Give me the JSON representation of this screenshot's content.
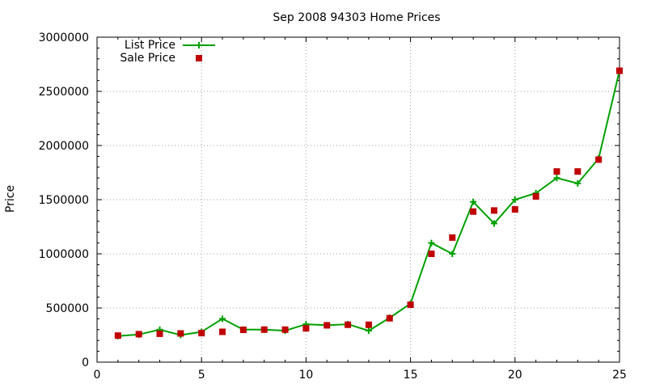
{
  "chart_data": {
    "type": "line",
    "title": "Sep 2008 94303 Home Prices",
    "xlabel": "",
    "ylabel": "Price",
    "xlim": [
      0,
      25
    ],
    "ylim": [
      0,
      3000000
    ],
    "x_ticks": [
      "0",
      "5",
      "10",
      "15",
      "20",
      "25"
    ],
    "y_ticks": [
      "0",
      "500000",
      "1000000",
      "1500000",
      "2000000",
      "2500000",
      "3000000"
    ],
    "grid": true,
    "legend_position": "top-left",
    "series": [
      {
        "name": "List Price",
        "style": "line-with-plus-markers",
        "color": "#00a000",
        "x": [
          1,
          2,
          3,
          4,
          5,
          6,
          7,
          8,
          9,
          10,
          11,
          12,
          13,
          14,
          15,
          16,
          17,
          18,
          19,
          20,
          21,
          22,
          23,
          24,
          25
        ],
        "y": [
          240000,
          255000,
          300000,
          250000,
          280000,
          400000,
          300000,
          300000,
          290000,
          350000,
          340000,
          350000,
          290000,
          410000,
          540000,
          1100000,
          1000000,
          1480000,
          1280000,
          1500000,
          1560000,
          1700000,
          1650000,
          1880000,
          2690000
        ]
      },
      {
        "name": "Sale Price",
        "style": "square-markers",
        "color": "#c00000",
        "x": [
          1,
          2,
          3,
          4,
          5,
          6,
          7,
          8,
          9,
          10,
          11,
          12,
          13,
          14,
          15,
          16,
          17,
          18,
          19,
          20,
          21,
          22,
          23,
          24,
          25
        ],
        "y": [
          245000,
          258000,
          262000,
          265000,
          268000,
          280000,
          298000,
          300000,
          300000,
          312000,
          340000,
          345000,
          345000,
          405000,
          530000,
          1000000,
          1150000,
          1390000,
          1400000,
          1410000,
          1530000,
          1760000,
          1760000,
          1870000,
          2690000
        ]
      }
    ]
  }
}
